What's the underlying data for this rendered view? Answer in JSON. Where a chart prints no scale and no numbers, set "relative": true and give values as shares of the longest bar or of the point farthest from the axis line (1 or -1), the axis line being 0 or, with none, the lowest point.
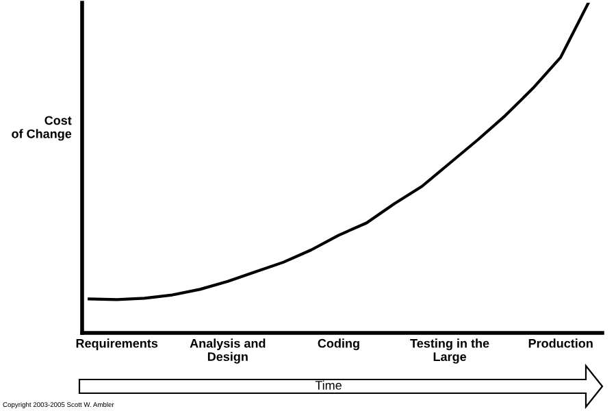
{
  "chart_data": {
    "type": "line",
    "relative": true,
    "ylabel": "Cost\nof Change",
    "xlabel": "Time",
    "categories": [
      null,
      "Requirements",
      null,
      null,
      null,
      "Analysis and\nDesign",
      null,
      null,
      null,
      "Coding",
      null,
      null,
      null,
      "Testing in the\nLarge",
      null,
      null,
      null,
      "Production",
      null
    ],
    "series": [
      {
        "color": "#000000",
        "values": [
          0.103,
          0.101,
          0.105,
          0.115,
          0.132,
          0.156,
          0.185,
          0.214,
          0.251,
          0.296,
          0.333,
          0.391,
          0.444,
          0.514,
          0.584,
          0.658,
          0.741,
          0.835,
          1.0
        ]
      }
    ],
    "grid": false,
    "legend": false,
    "marker": "none",
    "line_style": "solid",
    "annotations": [
      "Copyright 2003-2005 Scott W. Ambler"
    ]
  }
}
